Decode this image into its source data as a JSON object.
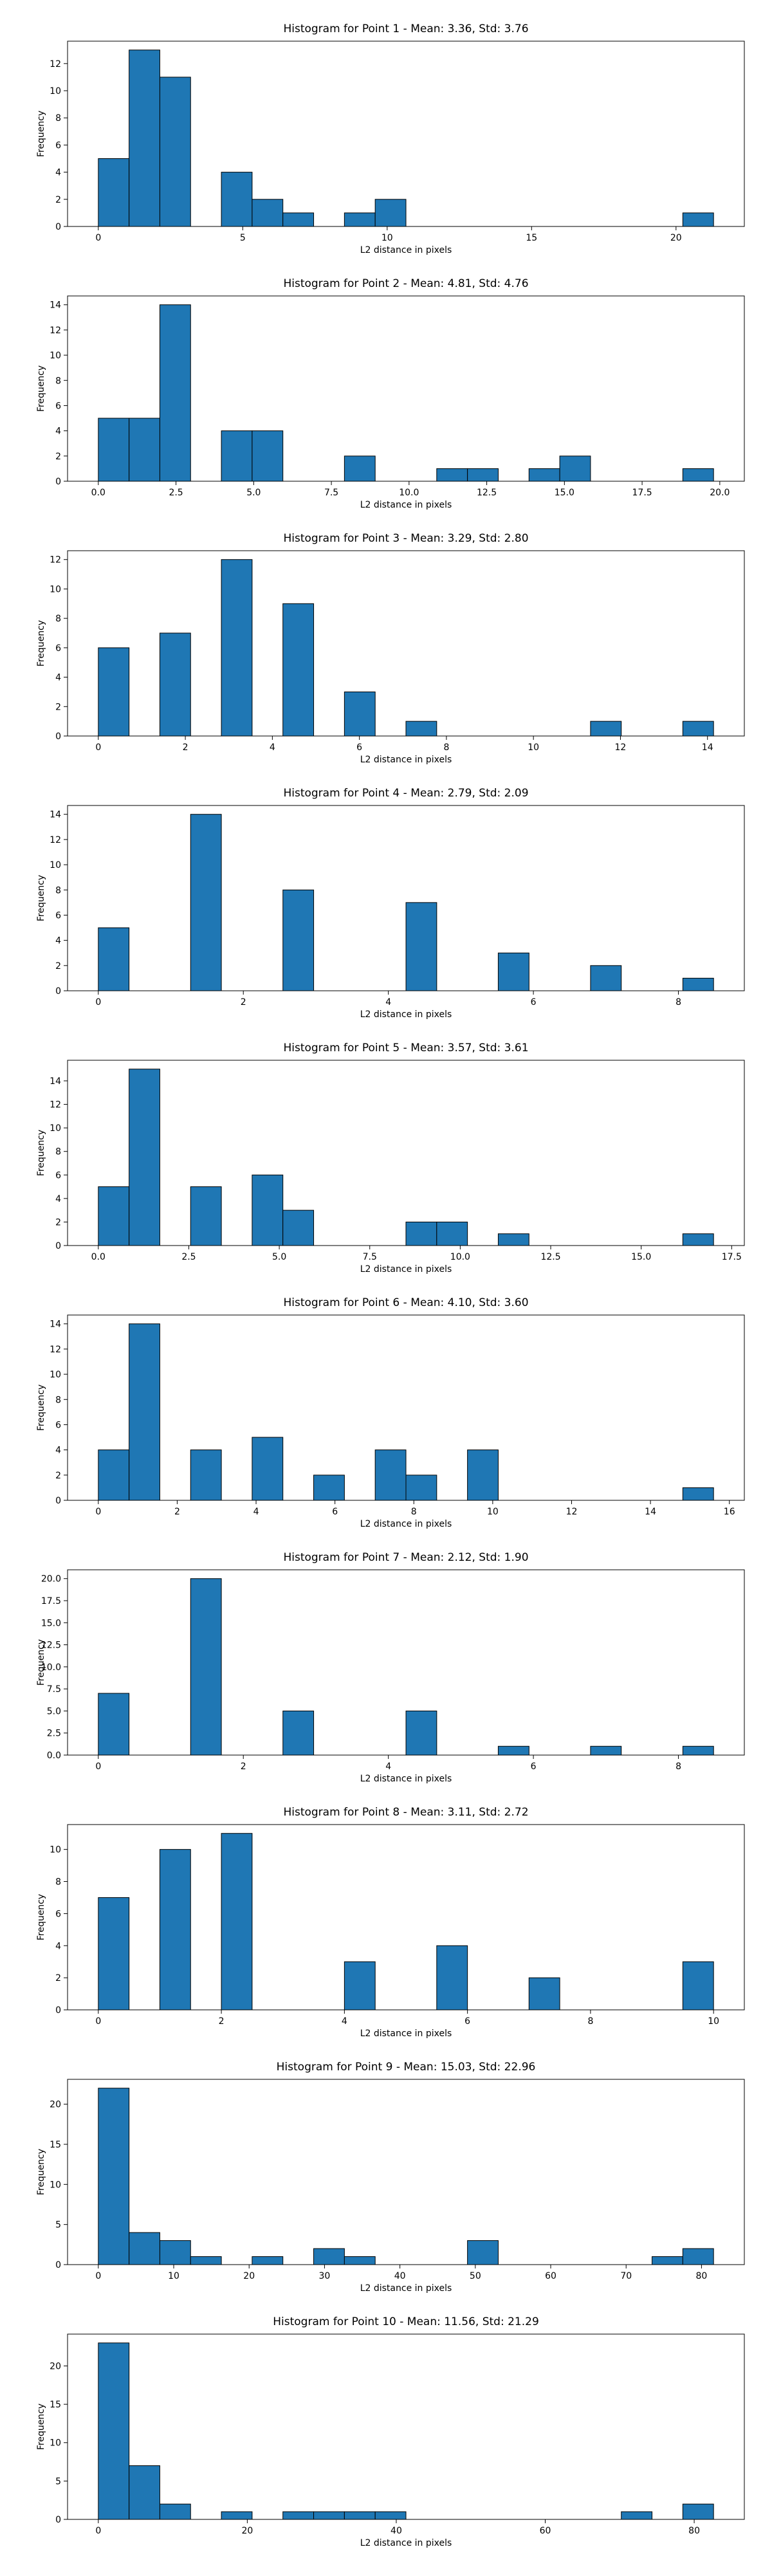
{
  "chart_data": [
    {
      "type": "histogram",
      "title": "Histogram for Point 1 - Mean: 3.36, Std: 3.76",
      "xlabel": "L2 distance in pixels",
      "ylabel": "Frequency",
      "color": "#1f77b4",
      "bins": [
        0,
        1.065,
        2.13,
        3.195,
        4.26,
        5.325,
        6.39,
        7.455,
        8.52,
        9.585,
        10.65,
        11.715,
        12.78,
        13.845,
        14.91,
        15.975,
        17.04,
        18.105,
        19.17,
        20.235,
        21.3
      ],
      "values": [
        5,
        13,
        11,
        0,
        4,
        2,
        1,
        0,
        1,
        2,
        0,
        0,
        0,
        0,
        0,
        0,
        0,
        0,
        0,
        1
      ],
      "xlim": [
        -1.065,
        22.365
      ],
      "ylim": [
        0,
        13.65
      ],
      "xticks": [
        0,
        5,
        10,
        15,
        20
      ],
      "yticks": [
        0,
        2,
        4,
        6,
        8,
        10,
        12
      ]
    },
    {
      "type": "histogram",
      "title": "Histogram for Point 2 - Mean: 4.81, Std: 4.76",
      "xlabel": "L2 distance in pixels",
      "ylabel": "Frequency",
      "color": "#1f77b4",
      "bins": [
        0,
        0.99,
        1.98,
        2.97,
        3.96,
        4.95,
        5.94,
        6.93,
        7.92,
        8.91,
        9.9,
        10.89,
        11.88,
        12.87,
        13.86,
        14.85,
        15.84,
        16.83,
        17.82,
        18.81,
        19.8
      ],
      "values": [
        5,
        5,
        14,
        0,
        4,
        4,
        0,
        0,
        2,
        0,
        0,
        1,
        1,
        0,
        1,
        2,
        0,
        0,
        0,
        1
      ],
      "xlim": [
        -0.99,
        20.79
      ],
      "ylim": [
        0,
        14.7
      ],
      "xticks": [
        {
          "value": 0,
          "label": "0.0"
        },
        {
          "value": 2.5,
          "label": "2.5"
        },
        {
          "value": 5,
          "label": "5.0"
        },
        {
          "value": 7.5,
          "label": "7.5"
        },
        {
          "value": 10,
          "label": "10.0"
        },
        {
          "value": 12.5,
          "label": "12.5"
        },
        {
          "value": 15,
          "label": "15.0"
        },
        {
          "value": 17.5,
          "label": "17.5"
        },
        {
          "value": 20,
          "label": "20.0"
        }
      ],
      "yticks": [
        0,
        2,
        4,
        6,
        8,
        10,
        12,
        14
      ]
    },
    {
      "type": "histogram",
      "title": "Histogram for Point 3 - Mean: 3.29, Std: 2.80",
      "xlabel": "L2 distance in pixels",
      "ylabel": "Frequency",
      "color": "#1f77b4",
      "bins": [
        0,
        0.707,
        1.414,
        2.121,
        2.828,
        3.535,
        4.242,
        4.949,
        5.656,
        6.363,
        7.07,
        7.777,
        8.484,
        9.191,
        9.898,
        10.605,
        11.312,
        12.019,
        12.726,
        13.433,
        14.14
      ],
      "values": [
        6,
        0,
        7,
        0,
        12,
        0,
        9,
        0,
        3,
        0,
        1,
        0,
        0,
        0,
        0,
        0,
        1,
        0,
        0,
        1
      ],
      "xlim": [
        -0.707,
        14.847
      ],
      "ylim": [
        0,
        12.6
      ],
      "xticks": [
        0,
        2,
        4,
        6,
        8,
        10,
        12,
        14
      ],
      "yticks": [
        0,
        2,
        4,
        6,
        8,
        10,
        12
      ]
    },
    {
      "type": "histogram",
      "title": "Histogram for Point 4 - Mean: 2.79, Std: 2.09",
      "xlabel": "L2 distance in pixels",
      "ylabel": "Frequency",
      "color": "#1f77b4",
      "bins": [
        0,
        0.424,
        0.849,
        1.273,
        1.697,
        2.121,
        2.546,
        2.97,
        3.394,
        3.818,
        4.243,
        4.667,
        5.091,
        5.515,
        5.94,
        6.364,
        6.788,
        7.212,
        7.637,
        8.061,
        8.485
      ],
      "values": [
        5,
        0,
        0,
        14,
        0,
        0,
        8,
        0,
        0,
        0,
        7,
        0,
        0,
        3,
        0,
        0,
        2,
        0,
        0,
        1
      ],
      "xlim": [
        -0.424,
        8.909
      ],
      "ylim": [
        0,
        14.7
      ],
      "xticks": [
        0,
        2,
        4,
        6,
        8
      ],
      "yticks": [
        0,
        2,
        4,
        6,
        8,
        10,
        12,
        14
      ]
    },
    {
      "type": "histogram",
      "title": "Histogram for Point 5 - Mean: 3.57, Std: 3.61",
      "xlabel": "L2 distance in pixels",
      "ylabel": "Frequency",
      "color": "#1f77b4",
      "bins": [
        0,
        0.85,
        1.7,
        2.55,
        3.4,
        4.25,
        5.1,
        5.95,
        6.8,
        7.65,
        8.5,
        9.35,
        10.2,
        11.05,
        11.9,
        12.75,
        13.6,
        14.45,
        15.3,
        16.15,
        17
      ],
      "values": [
        5,
        15,
        0,
        5,
        0,
        6,
        3,
        0,
        0,
        0,
        2,
        2,
        0,
        1,
        0,
        0,
        0,
        0,
        0,
        1
      ],
      "xlim": [
        -0.85,
        17.85
      ],
      "ylim": [
        0,
        15.75
      ],
      "xticks": [
        {
          "value": 0,
          "label": "0.0"
        },
        {
          "value": 2.5,
          "label": "2.5"
        },
        {
          "value": 5,
          "label": "5.0"
        },
        {
          "value": 7.5,
          "label": "7.5"
        },
        {
          "value": 10,
          "label": "10.0"
        },
        {
          "value": 12.5,
          "label": "12.5"
        },
        {
          "value": 15,
          "label": "15.0"
        },
        {
          "value": 17.5,
          "label": "17.5"
        }
      ],
      "yticks": [
        0,
        2,
        4,
        6,
        8,
        10,
        12,
        14
      ]
    },
    {
      "type": "histogram",
      "title": "Histogram for Point 6 - Mean: 4.10, Std: 3.60",
      "xlabel": "L2 distance in pixels",
      "ylabel": "Frequency",
      "color": "#1f77b4",
      "bins": [
        0,
        0.78,
        1.56,
        2.34,
        3.12,
        3.9,
        4.68,
        5.46,
        6.24,
        7.02,
        7.8,
        8.58,
        9.36,
        10.14,
        10.92,
        11.7,
        12.48,
        13.26,
        14.04,
        14.82,
        15.6
      ],
      "values": [
        4,
        14,
        0,
        4,
        0,
        5,
        0,
        2,
        0,
        4,
        2,
        0,
        4,
        0,
        0,
        0,
        0,
        0,
        0,
        1
      ],
      "xlim": [
        -0.78,
        16.38
      ],
      "ylim": [
        0,
        14.7
      ],
      "xticks": [
        0,
        2,
        4,
        6,
        8,
        10,
        12,
        14,
        16
      ],
      "yticks": [
        0,
        2,
        4,
        6,
        8,
        10,
        12,
        14
      ]
    },
    {
      "type": "histogram",
      "title": "Histogram for Point 7 - Mean: 2.12, Std: 1.90",
      "xlabel": "L2 distance in pixels",
      "ylabel": "Frequency",
      "color": "#1f77b4",
      "bins": [
        0,
        0.424,
        0.849,
        1.273,
        1.697,
        2.121,
        2.546,
        2.97,
        3.394,
        3.818,
        4.243,
        4.667,
        5.091,
        5.515,
        5.94,
        6.364,
        6.788,
        7.212,
        7.637,
        8.061,
        8.485
      ],
      "values": [
        7,
        0,
        0,
        20,
        0,
        0,
        5,
        0,
        0,
        0,
        5,
        0,
        0,
        1,
        0,
        0,
        1,
        0,
        0,
        1
      ],
      "xlim": [
        -0.424,
        8.909
      ],
      "ylim": [
        0,
        21
      ],
      "xticks": [
        0,
        2,
        4,
        6,
        8
      ],
      "yticks": [
        {
          "value": 0,
          "label": "0.0"
        },
        {
          "value": 2.5,
          "label": "2.5"
        },
        {
          "value": 5,
          "label": "5.0"
        },
        {
          "value": 7.5,
          "label": "7.5"
        },
        {
          "value": 10,
          "label": "10.0"
        },
        {
          "value": 12.5,
          "label": "12.5"
        },
        {
          "value": 15,
          "label": "15.0"
        },
        {
          "value": 17.5,
          "label": "17.5"
        },
        {
          "value": 20,
          "label": "20.0"
        }
      ]
    },
    {
      "type": "histogram",
      "title": "Histogram for Point 8 - Mean: 3.11, Std: 2.72",
      "xlabel": "L2 distance in pixels",
      "ylabel": "Frequency",
      "color": "#1f77b4",
      "bins": [
        0,
        0.5,
        1,
        1.5,
        2,
        2.5,
        3,
        3.5,
        4,
        4.5,
        5,
        5.5,
        6,
        6.5,
        7,
        7.5,
        8,
        8.5,
        9,
        9.5,
        10
      ],
      "values": [
        7,
        0,
        10,
        0,
        11,
        0,
        0,
        0,
        3,
        0,
        0,
        4,
        0,
        0,
        2,
        0,
        0,
        0,
        0,
        3
      ],
      "xlim": [
        -0.5,
        10.5
      ],
      "ylim": [
        0,
        11.55
      ],
      "xticks": [
        0,
        2,
        4,
        6,
        8,
        10
      ],
      "yticks": [
        0,
        2,
        4,
        6,
        8,
        10
      ]
    },
    {
      "type": "histogram",
      "title": "Histogram for Point 9 - Mean: 15.03, Std: 22.96",
      "xlabel": "L2 distance in pixels",
      "ylabel": "Frequency",
      "color": "#1f77b4",
      "bins": [
        0,
        4.08,
        8.16,
        12.24,
        16.32,
        20.4,
        24.48,
        28.56,
        32.64,
        36.72,
        40.8,
        44.88,
        48.96,
        53.04,
        57.12,
        61.2,
        65.28,
        69.36,
        73.44,
        77.52,
        81.6
      ],
      "values": [
        22,
        4,
        3,
        1,
        0,
        1,
        0,
        2,
        1,
        0,
        0,
        0,
        3,
        0,
        0,
        0,
        0,
        0,
        1,
        2
      ],
      "xlim": [
        -4.08,
        85.68
      ],
      "ylim": [
        0,
        23.1
      ],
      "xticks": [
        0,
        10,
        20,
        30,
        40,
        50,
        60,
        70,
        80
      ],
      "yticks": [
        0,
        5,
        10,
        15,
        20
      ]
    },
    {
      "type": "histogram",
      "title": "Histogram for Point 10 - Mean: 11.56, Std: 21.29",
      "xlabel": "L2 distance in pixels",
      "ylabel": "Frequency",
      "color": "#1f77b4",
      "bins": [
        0,
        4.13,
        8.26,
        12.39,
        16.52,
        20.65,
        24.78,
        28.91,
        33.04,
        37.17,
        41.3,
        45.43,
        49.56,
        53.69,
        57.82,
        61.95,
        66.08,
        70.21,
        74.34,
        78.47,
        82.6
      ],
      "values": [
        23,
        7,
        2,
        0,
        1,
        0,
        1,
        1,
        1,
        1,
        0,
        0,
        0,
        0,
        0,
        0,
        0,
        1,
        0,
        2
      ],
      "xlim": [
        -4.13,
        86.73
      ],
      "ylim": [
        0,
        24.15
      ],
      "xticks": [
        0,
        20,
        40,
        60,
        80
      ],
      "yticks": [
        0,
        5,
        10,
        15,
        20
      ]
    }
  ]
}
